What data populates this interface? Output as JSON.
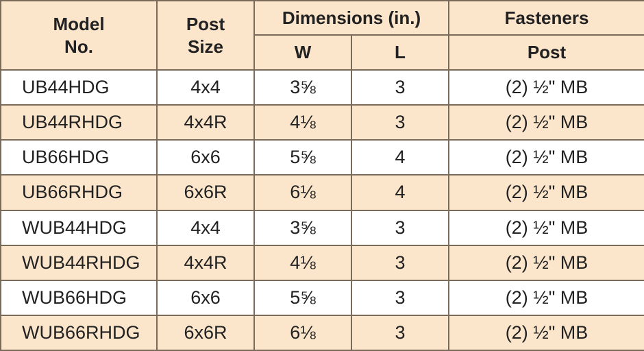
{
  "header": {
    "model_line1": "Model",
    "model_line2": "No.",
    "post_line1": "Post",
    "post_line2": "Size",
    "dimensions": "Dimensions (in.)",
    "fasteners": "Fasteners",
    "w": "W",
    "l": "L",
    "post": "Post"
  },
  "rows": [
    {
      "model": "UB44HDG",
      "size": "4x4",
      "w": "3⅝",
      "l": "3",
      "fastener": "(2) ½\" MB"
    },
    {
      "model": "UB44RHDG",
      "size": "4x4R",
      "w": "4⅛",
      "l": "3",
      "fastener": "(2) ½\" MB"
    },
    {
      "model": "UB66HDG",
      "size": "6x6",
      "w": "5⅝",
      "l": "4",
      "fastener": "(2) ½\" MB"
    },
    {
      "model": "UB66RHDG",
      "size": "6x6R",
      "w": "6⅛",
      "l": "4",
      "fastener": "(2) ½\" MB"
    },
    {
      "model": "WUB44HDG",
      "size": "4x4",
      "w": "3⅝",
      "l": "3",
      "fastener": "(2) ½\" MB"
    },
    {
      "model": "WUB44RHDG",
      "size": "4x4R",
      "w": "4⅛",
      "l": "3",
      "fastener": "(2) ½\" MB"
    },
    {
      "model": "WUB66HDG",
      "size": "6x6",
      "w": "5⅝",
      "l": "3",
      "fastener": "(2) ½\" MB"
    },
    {
      "model": "WUB66RHDG",
      "size": "6x6R",
      "w": "6⅛",
      "l": "3",
      "fastener": "(2) ½\" MB"
    }
  ]
}
